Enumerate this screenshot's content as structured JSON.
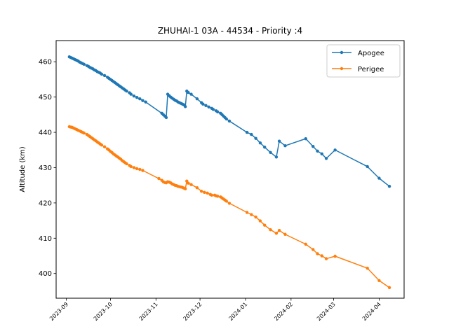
{
  "chart_data": {
    "type": "line",
    "title": "ZHUHAI-1 03A - 44534 - Priority :4",
    "xlabel": "",
    "ylabel": "Altitude (km)",
    "xlim": [
      "2023-08-25",
      "2024-04-18"
    ],
    "ylim": [
      393,
      466
    ],
    "y_ticks": [
      400,
      410,
      420,
      430,
      440,
      450,
      460
    ],
    "x_ticks": [
      "2023-09",
      "2023-10",
      "2023-11",
      "2023-12",
      "2024-01",
      "2024-02",
      "2024-03",
      "2024-04"
    ],
    "x_tick_dates": [
      "2023-09-01",
      "2023-10-01",
      "2023-11-01",
      "2023-12-01",
      "2024-01-01",
      "2024-02-01",
      "2024-03-01",
      "2024-04-01"
    ],
    "grid": false,
    "legend_position": "top-right",
    "series": [
      {
        "name": "Apogee",
        "color": "#1f77b4",
        "points": [
          [
            "2023-09-03",
            461.4
          ],
          [
            "2023-09-04",
            461.2
          ],
          [
            "2023-09-05",
            461.0
          ],
          [
            "2023-09-06",
            460.8
          ],
          [
            "2023-09-07",
            460.6
          ],
          [
            "2023-09-08",
            460.4
          ],
          [
            "2023-09-09",
            460.2
          ],
          [
            "2023-09-10",
            459.9
          ],
          [
            "2023-09-11",
            459.7
          ],
          [
            "2023-09-12",
            459.5
          ],
          [
            "2023-09-13",
            459.3
          ],
          [
            "2023-09-15",
            458.9
          ],
          [
            "2023-09-16",
            458.7
          ],
          [
            "2023-09-17",
            458.4
          ],
          [
            "2023-09-18",
            458.2
          ],
          [
            "2023-09-19",
            458.0
          ],
          [
            "2023-09-20",
            457.7
          ],
          [
            "2023-09-21",
            457.5
          ],
          [
            "2023-09-22",
            457.2
          ],
          [
            "2023-09-23",
            457.0
          ],
          [
            "2023-09-24",
            456.8
          ],
          [
            "2023-09-25",
            456.5
          ],
          [
            "2023-09-27",
            456.1
          ],
          [
            "2023-09-29",
            455.6
          ],
          [
            "2023-09-30",
            455.3
          ],
          [
            "2023-10-01",
            455.0
          ],
          [
            "2023-10-02",
            454.7
          ],
          [
            "2023-10-03",
            454.4
          ],
          [
            "2023-10-04",
            454.1
          ],
          [
            "2023-10-05",
            453.8
          ],
          [
            "2023-10-06",
            453.5
          ],
          [
            "2023-10-07",
            453.2
          ],
          [
            "2023-10-08",
            452.9
          ],
          [
            "2023-10-09",
            452.6
          ],
          [
            "2023-10-10",
            452.3
          ],
          [
            "2023-10-11",
            452.0
          ],
          [
            "2023-10-12",
            451.7
          ],
          [
            "2023-10-14",
            451.2
          ],
          [
            "2023-10-15",
            450.8
          ],
          [
            "2023-10-17",
            450.3
          ],
          [
            "2023-10-19",
            449.9
          ],
          [
            "2023-10-21",
            449.5
          ],
          [
            "2023-10-23",
            449.0
          ],
          [
            "2023-10-25",
            448.6
          ],
          [
            "2023-11-05",
            445.4
          ],
          [
            "2023-11-06",
            445.0
          ],
          [
            "2023-11-07",
            444.6
          ],
          [
            "2023-11-08",
            444.2
          ],
          [
            "2023-11-09",
            450.8
          ],
          [
            "2023-11-10",
            450.4
          ],
          [
            "2023-11-11",
            450.0
          ],
          [
            "2023-11-12",
            449.7
          ],
          [
            "2023-11-13",
            449.4
          ],
          [
            "2023-11-14",
            449.1
          ],
          [
            "2023-11-15",
            448.9
          ],
          [
            "2023-11-16",
            448.6
          ],
          [
            "2023-11-17",
            448.4
          ],
          [
            "2023-11-18",
            448.2
          ],
          [
            "2023-11-19",
            448.0
          ],
          [
            "2023-11-20",
            447.8
          ],
          [
            "2023-11-21",
            447.3
          ],
          [
            "2023-11-22",
            451.7
          ],
          [
            "2023-11-23",
            451.3
          ],
          [
            "2023-11-25",
            450.8
          ],
          [
            "2023-11-29",
            449.5
          ],
          [
            "2023-12-02",
            448.4
          ],
          [
            "2023-12-03",
            448.0
          ],
          [
            "2023-12-05",
            447.6
          ],
          [
            "2023-12-07",
            447.2
          ],
          [
            "2023-12-09",
            446.8
          ],
          [
            "2023-12-10",
            446.5
          ],
          [
            "2023-12-12",
            446.1
          ],
          [
            "2023-12-13",
            445.8
          ],
          [
            "2023-12-15",
            445.4
          ],
          [
            "2023-12-16",
            445.0
          ],
          [
            "2023-12-17",
            444.6
          ],
          [
            "2023-12-18",
            444.2
          ],
          [
            "2023-12-19",
            443.8
          ],
          [
            "2023-12-21",
            443.2
          ],
          [
            "2024-01-02",
            440.0
          ],
          [
            "2024-01-05",
            439.4
          ],
          [
            "2024-01-08",
            438.3
          ],
          [
            "2024-01-11",
            437.0
          ],
          [
            "2024-01-14",
            435.8
          ],
          [
            "2024-01-18",
            434.3
          ],
          [
            "2024-01-22",
            433.0
          ],
          [
            "2024-01-24",
            437.5
          ],
          [
            "2024-01-28",
            436.2
          ],
          [
            "2024-02-11",
            438.2
          ],
          [
            "2024-02-16",
            436.0
          ],
          [
            "2024-02-19",
            434.7
          ],
          [
            "2024-02-22",
            433.9
          ],
          [
            "2024-02-25",
            432.6
          ],
          [
            "2024-03-02",
            435.0
          ],
          [
            "2024-03-24",
            430.3
          ],
          [
            "2024-04-01",
            427.0
          ],
          [
            "2024-04-08",
            424.7
          ]
        ]
      },
      {
        "name": "Perigee",
        "color": "#ff7f0e",
        "points": [
          [
            "2023-09-03",
            441.6
          ],
          [
            "2023-09-04",
            441.5
          ],
          [
            "2023-09-05",
            441.4
          ],
          [
            "2023-09-06",
            441.2
          ],
          [
            "2023-09-07",
            441.0
          ],
          [
            "2023-09-08",
            440.8
          ],
          [
            "2023-09-09",
            440.6
          ],
          [
            "2023-09-10",
            440.4
          ],
          [
            "2023-09-11",
            440.2
          ],
          [
            "2023-09-12",
            440.0
          ],
          [
            "2023-09-13",
            439.8
          ],
          [
            "2023-09-15",
            439.4
          ],
          [
            "2023-09-16",
            439.1
          ],
          [
            "2023-09-17",
            438.8
          ],
          [
            "2023-09-18",
            438.5
          ],
          [
            "2023-09-19",
            438.2
          ],
          [
            "2023-09-20",
            437.9
          ],
          [
            "2023-09-21",
            437.6
          ],
          [
            "2023-09-22",
            437.3
          ],
          [
            "2023-09-23",
            437.0
          ],
          [
            "2023-09-24",
            436.7
          ],
          [
            "2023-09-25",
            436.4
          ],
          [
            "2023-09-27",
            435.9
          ],
          [
            "2023-09-29",
            435.3
          ],
          [
            "2023-09-30",
            435.0
          ],
          [
            "2023-10-01",
            434.6
          ],
          [
            "2023-10-02",
            434.3
          ],
          [
            "2023-10-03",
            433.9
          ],
          [
            "2023-10-04",
            433.6
          ],
          [
            "2023-10-05",
            433.3
          ],
          [
            "2023-10-06",
            433.0
          ],
          [
            "2023-10-07",
            432.7
          ],
          [
            "2023-10-08",
            432.4
          ],
          [
            "2023-10-09",
            432.0
          ],
          [
            "2023-10-10",
            431.7
          ],
          [
            "2023-10-11",
            431.4
          ],
          [
            "2023-10-12",
            431.1
          ],
          [
            "2023-10-14",
            430.6
          ],
          [
            "2023-10-15",
            430.3
          ],
          [
            "2023-10-17",
            430.0
          ],
          [
            "2023-10-19",
            429.7
          ],
          [
            "2023-10-21",
            429.5
          ],
          [
            "2023-10-23",
            429.2
          ],
          [
            "2023-11-03",
            426.9
          ],
          [
            "2023-11-05",
            426.4
          ],
          [
            "2023-11-06",
            426.0
          ],
          [
            "2023-11-07",
            425.8
          ],
          [
            "2023-11-08",
            425.7
          ],
          [
            "2023-11-09",
            426.0
          ],
          [
            "2023-11-10",
            425.9
          ],
          [
            "2023-11-11",
            425.7
          ],
          [
            "2023-11-12",
            425.4
          ],
          [
            "2023-11-13",
            425.2
          ],
          [
            "2023-11-14",
            425.0
          ],
          [
            "2023-11-15",
            424.9
          ],
          [
            "2023-11-16",
            424.7
          ],
          [
            "2023-11-17",
            424.6
          ],
          [
            "2023-11-18",
            424.5
          ],
          [
            "2023-11-19",
            424.4
          ],
          [
            "2023-11-20",
            424.2
          ],
          [
            "2023-11-21",
            424.0
          ],
          [
            "2023-11-22",
            426.2
          ],
          [
            "2023-11-23",
            425.6
          ],
          [
            "2023-11-25",
            425.2
          ],
          [
            "2023-11-29",
            424.3
          ],
          [
            "2023-12-02",
            423.3
          ],
          [
            "2023-12-04",
            423.0
          ],
          [
            "2023-12-06",
            422.8
          ],
          [
            "2023-12-08",
            422.4
          ],
          [
            "2023-12-09",
            422.2
          ],
          [
            "2023-12-11",
            422.2
          ],
          [
            "2023-12-12",
            422.0
          ],
          [
            "2023-12-13",
            421.9
          ],
          [
            "2023-12-15",
            421.7
          ],
          [
            "2023-12-16",
            421.4
          ],
          [
            "2023-12-17",
            421.1
          ],
          [
            "2023-12-18",
            420.8
          ],
          [
            "2023-12-19",
            420.5
          ],
          [
            "2023-12-21",
            419.9
          ],
          [
            "2024-01-02",
            417.3
          ],
          [
            "2024-01-05",
            416.7
          ],
          [
            "2024-01-08",
            416.0
          ],
          [
            "2024-01-11",
            414.9
          ],
          [
            "2024-01-14",
            413.7
          ],
          [
            "2024-01-18",
            412.4
          ],
          [
            "2024-01-22",
            411.4
          ],
          [
            "2024-01-24",
            412.2
          ],
          [
            "2024-01-28",
            411.1
          ],
          [
            "2024-02-11",
            408.3
          ],
          [
            "2024-02-16",
            406.8
          ],
          [
            "2024-02-19",
            405.6
          ],
          [
            "2024-02-22",
            405.0
          ],
          [
            "2024-02-25",
            404.2
          ],
          [
            "2024-03-02",
            404.9
          ],
          [
            "2024-03-24",
            401.5
          ],
          [
            "2024-04-01",
            398.0
          ],
          [
            "2024-04-08",
            396.0
          ]
        ]
      }
    ]
  }
}
